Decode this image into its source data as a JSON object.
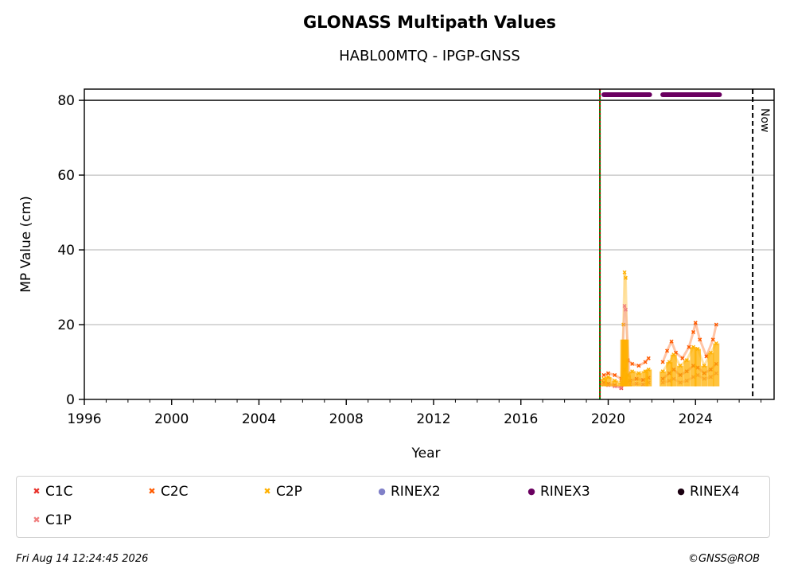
{
  "chart_data": {
    "type": "scatter",
    "title": "GLONASS Multipath Values",
    "subtitle": "HABL00MTQ - IPGP-GNSS",
    "xlabel": "Year",
    "ylabel": "MP Value (cm)",
    "xlim": [
      1996,
      2027.6
    ],
    "ylim": [
      0,
      83
    ],
    "x_ticks": [
      1996,
      2000,
      2004,
      2008,
      2012,
      2016,
      2020,
      2024
    ],
    "y_ticks": [
      0,
      20,
      40,
      60,
      80
    ],
    "grid": "y",
    "hline": 80,
    "now_line": {
      "x": 2026.62,
      "label": "Now"
    },
    "start_lines": {
      "x": 2019.62,
      "colors": [
        "#cc0000",
        "#008000"
      ]
    },
    "legend": {
      "placement": "below",
      "items": [
        {
          "label": "C1C",
          "color": "#e8312a",
          "marker": "✖"
        },
        {
          "label": "C2C",
          "color": "#ff5a00",
          "marker": "✖"
        },
        {
          "label": "C2P",
          "color": "#ffb000",
          "marker": "✖"
        },
        {
          "label": "RINEX2",
          "color": "#8080c8",
          "marker": "●"
        },
        {
          "label": "RINEX3",
          "color": "#6a0060",
          "marker": "●"
        },
        {
          "label": "RINEX4",
          "color": "#1a0010",
          "marker": "●"
        },
        {
          "label": "C1P",
          "color": "#f08080",
          "marker": "✖"
        }
      ]
    },
    "rinex3_periods": [
      {
        "x0": 2019.8,
        "x1": 2021.9,
        "y": 81.5
      },
      {
        "x0": 2022.5,
        "x1": 2025.1,
        "y": 81.5
      }
    ],
    "series": [
      {
        "name": "C1C",
        "color": "#e8312a",
        "x": [
          2019.8,
          2020.0,
          2020.3,
          2020.6,
          2020.7,
          2020.8,
          2021.0,
          2021.3,
          2021.6,
          2021.85,
          2022.5,
          2022.8,
          2023.0,
          2023.3,
          2023.6,
          2023.9,
          2024.1,
          2024.4,
          2024.7,
          2024.95
        ],
        "y": [
          4.5,
          4.2,
          3.8,
          3.0,
          4.0,
          4.5,
          5.0,
          5.5,
          5.2,
          5.8,
          5.5,
          7.0,
          8.0,
          6.5,
          7.5,
          9.0,
          8.5,
          7.0,
          8.0,
          9.5
        ]
      },
      {
        "name": "C2C",
        "color": "#ff5a00",
        "x": [
          2019.8,
          2020.0,
          2020.3,
          2020.6,
          2020.75,
          2020.9,
          2021.1,
          2021.4,
          2021.7,
          2021.85,
          2022.5,
          2022.7,
          2022.9,
          2023.1,
          2023.4,
          2023.7,
          2023.9,
          2024.0,
          2024.2,
          2024.5,
          2024.8,
          2024.95
        ],
        "y": [
          6.5,
          7.0,
          6.5,
          5.5,
          8.0,
          10.5,
          9.5,
          9.0,
          10.0,
          11.0,
          10.0,
          13.0,
          15.5,
          12.5,
          11.0,
          14.0,
          18.0,
          20.5,
          16.0,
          11.5,
          16.0,
          20.0
        ]
      },
      {
        "name": "C2P",
        "color": "#ffb000",
        "x": [
          2019.8,
          2020.0,
          2020.3,
          2020.6,
          2020.7,
          2020.75,
          2020.8,
          2020.9,
          2021.1,
          2021.4,
          2021.7,
          2021.85,
          2022.5,
          2022.8,
          2023.0,
          2023.3,
          2023.6,
          2023.9,
          2024.1,
          2024.4,
          2024.7,
          2024.95
        ],
        "y": [
          5.5,
          6.0,
          5.0,
          4.5,
          20.0,
          34.0,
          32.5,
          6.5,
          7.5,
          7.0,
          7.5,
          8.0,
          7.5,
          10.0,
          12.0,
          9.0,
          10.5,
          14.0,
          13.5,
          9.0,
          12.5,
          15.0
        ]
      },
      {
        "name": "C1P",
        "color": "#f08080",
        "x": [
          2019.8,
          2020.0,
          2020.3,
          2020.6,
          2020.75,
          2020.8,
          2021.0,
          2021.3,
          2021.6,
          2021.85,
          2022.5,
          2022.8,
          2023.0,
          2023.3,
          2023.6,
          2023.9,
          2024.1,
          2024.4,
          2024.7,
          2024.95
        ],
        "y": [
          4.0,
          3.8,
          3.5,
          3.2,
          25.0,
          24.0,
          4.0,
          4.2,
          4.0,
          4.5,
          4.5,
          5.0,
          5.5,
          4.5,
          5.0,
          6.0,
          6.5,
          5.5,
          6.0,
          7.0
        ]
      }
    ]
  },
  "footer": {
    "timestamp": "Fri Aug 14 12:24:45 2026",
    "credit": "©GNSS@ROB"
  }
}
